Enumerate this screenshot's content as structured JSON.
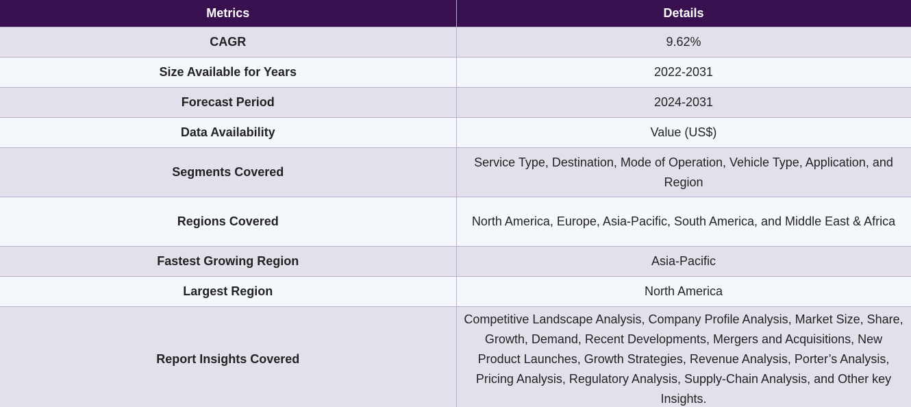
{
  "table": {
    "headers": {
      "metrics": "Metrics",
      "details": "Details"
    },
    "rows": [
      {
        "metric": "CAGR",
        "details": "9.62%"
      },
      {
        "metric": "Size Available for Years",
        "details": "2022-2031"
      },
      {
        "metric": "Forecast Period",
        "details": "2024-2031"
      },
      {
        "metric": "Data Availability",
        "details": "Value (US$)"
      },
      {
        "metric": "Segments Covered",
        "details": "Service Type, Destination, Mode of Operation, Vehicle Type, Application, and Region"
      },
      {
        "metric": "Regions Covered",
        "details": "North America, Europe, Asia-Pacific, South America, and Middle East & Africa"
      },
      {
        "metric": "Fastest Growing Region",
        "details": "Asia-Pacific"
      },
      {
        "metric": "Largest Region",
        "details": "North America"
      },
      {
        "metric": "Report Insights Covered",
        "details": "Competitive Landscape Analysis, Company Profile Analysis, Market Size, Share, Growth, Demand, Recent Developments, Mergers and Acquisitions, New Product Launches, Growth Strategies, Revenue Analysis, Porter’s Analysis, Pricing Analysis, Regulatory Analysis, Supply-Chain Analysis, and Other key Insights."
      }
    ]
  }
}
